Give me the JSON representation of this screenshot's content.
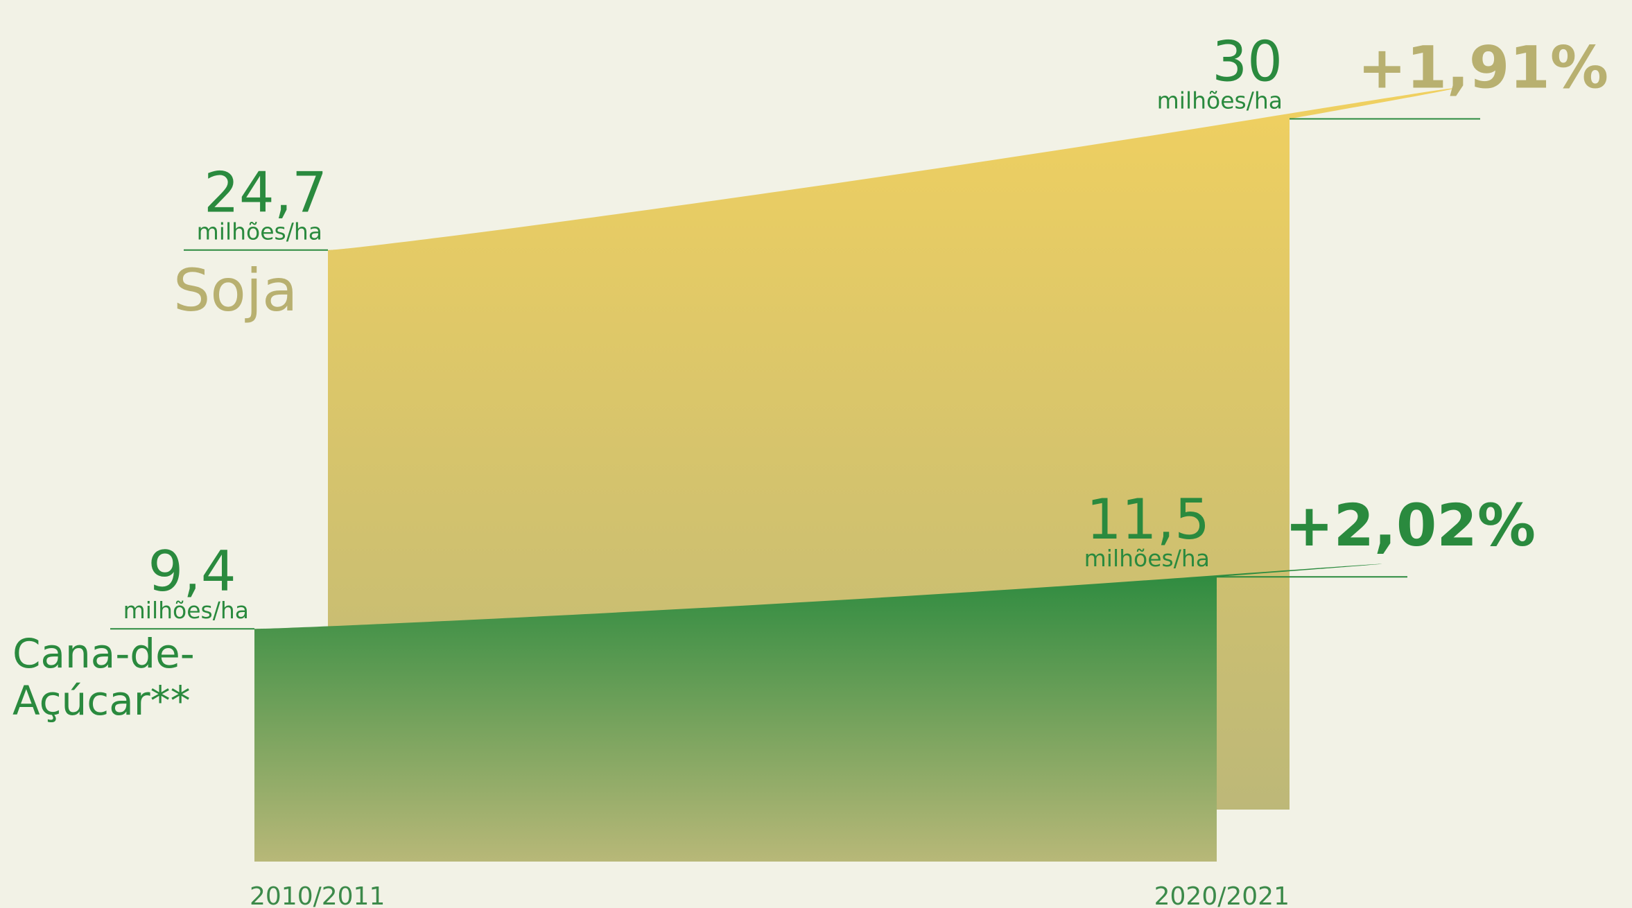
{
  "chart_data": {
    "type": "area",
    "categories": [
      "2010/2011",
      "2020/2021"
    ],
    "unit": "milhões/ha",
    "ylim": [
      0,
      32
    ],
    "series": [
      {
        "name": "Soja",
        "color": "#f0d060",
        "values": [
          24.7,
          30
        ],
        "value_labels": [
          "24,7",
          "30"
        ],
        "change": "+1,91%"
      },
      {
        "name": "Cana-de-Açúcar**",
        "color": "#2a8a3e",
        "values": [
          9.4,
          11.5
        ],
        "value_labels": [
          "9,4",
          "11,5"
        ],
        "change": "+2,02%"
      }
    ]
  }
}
